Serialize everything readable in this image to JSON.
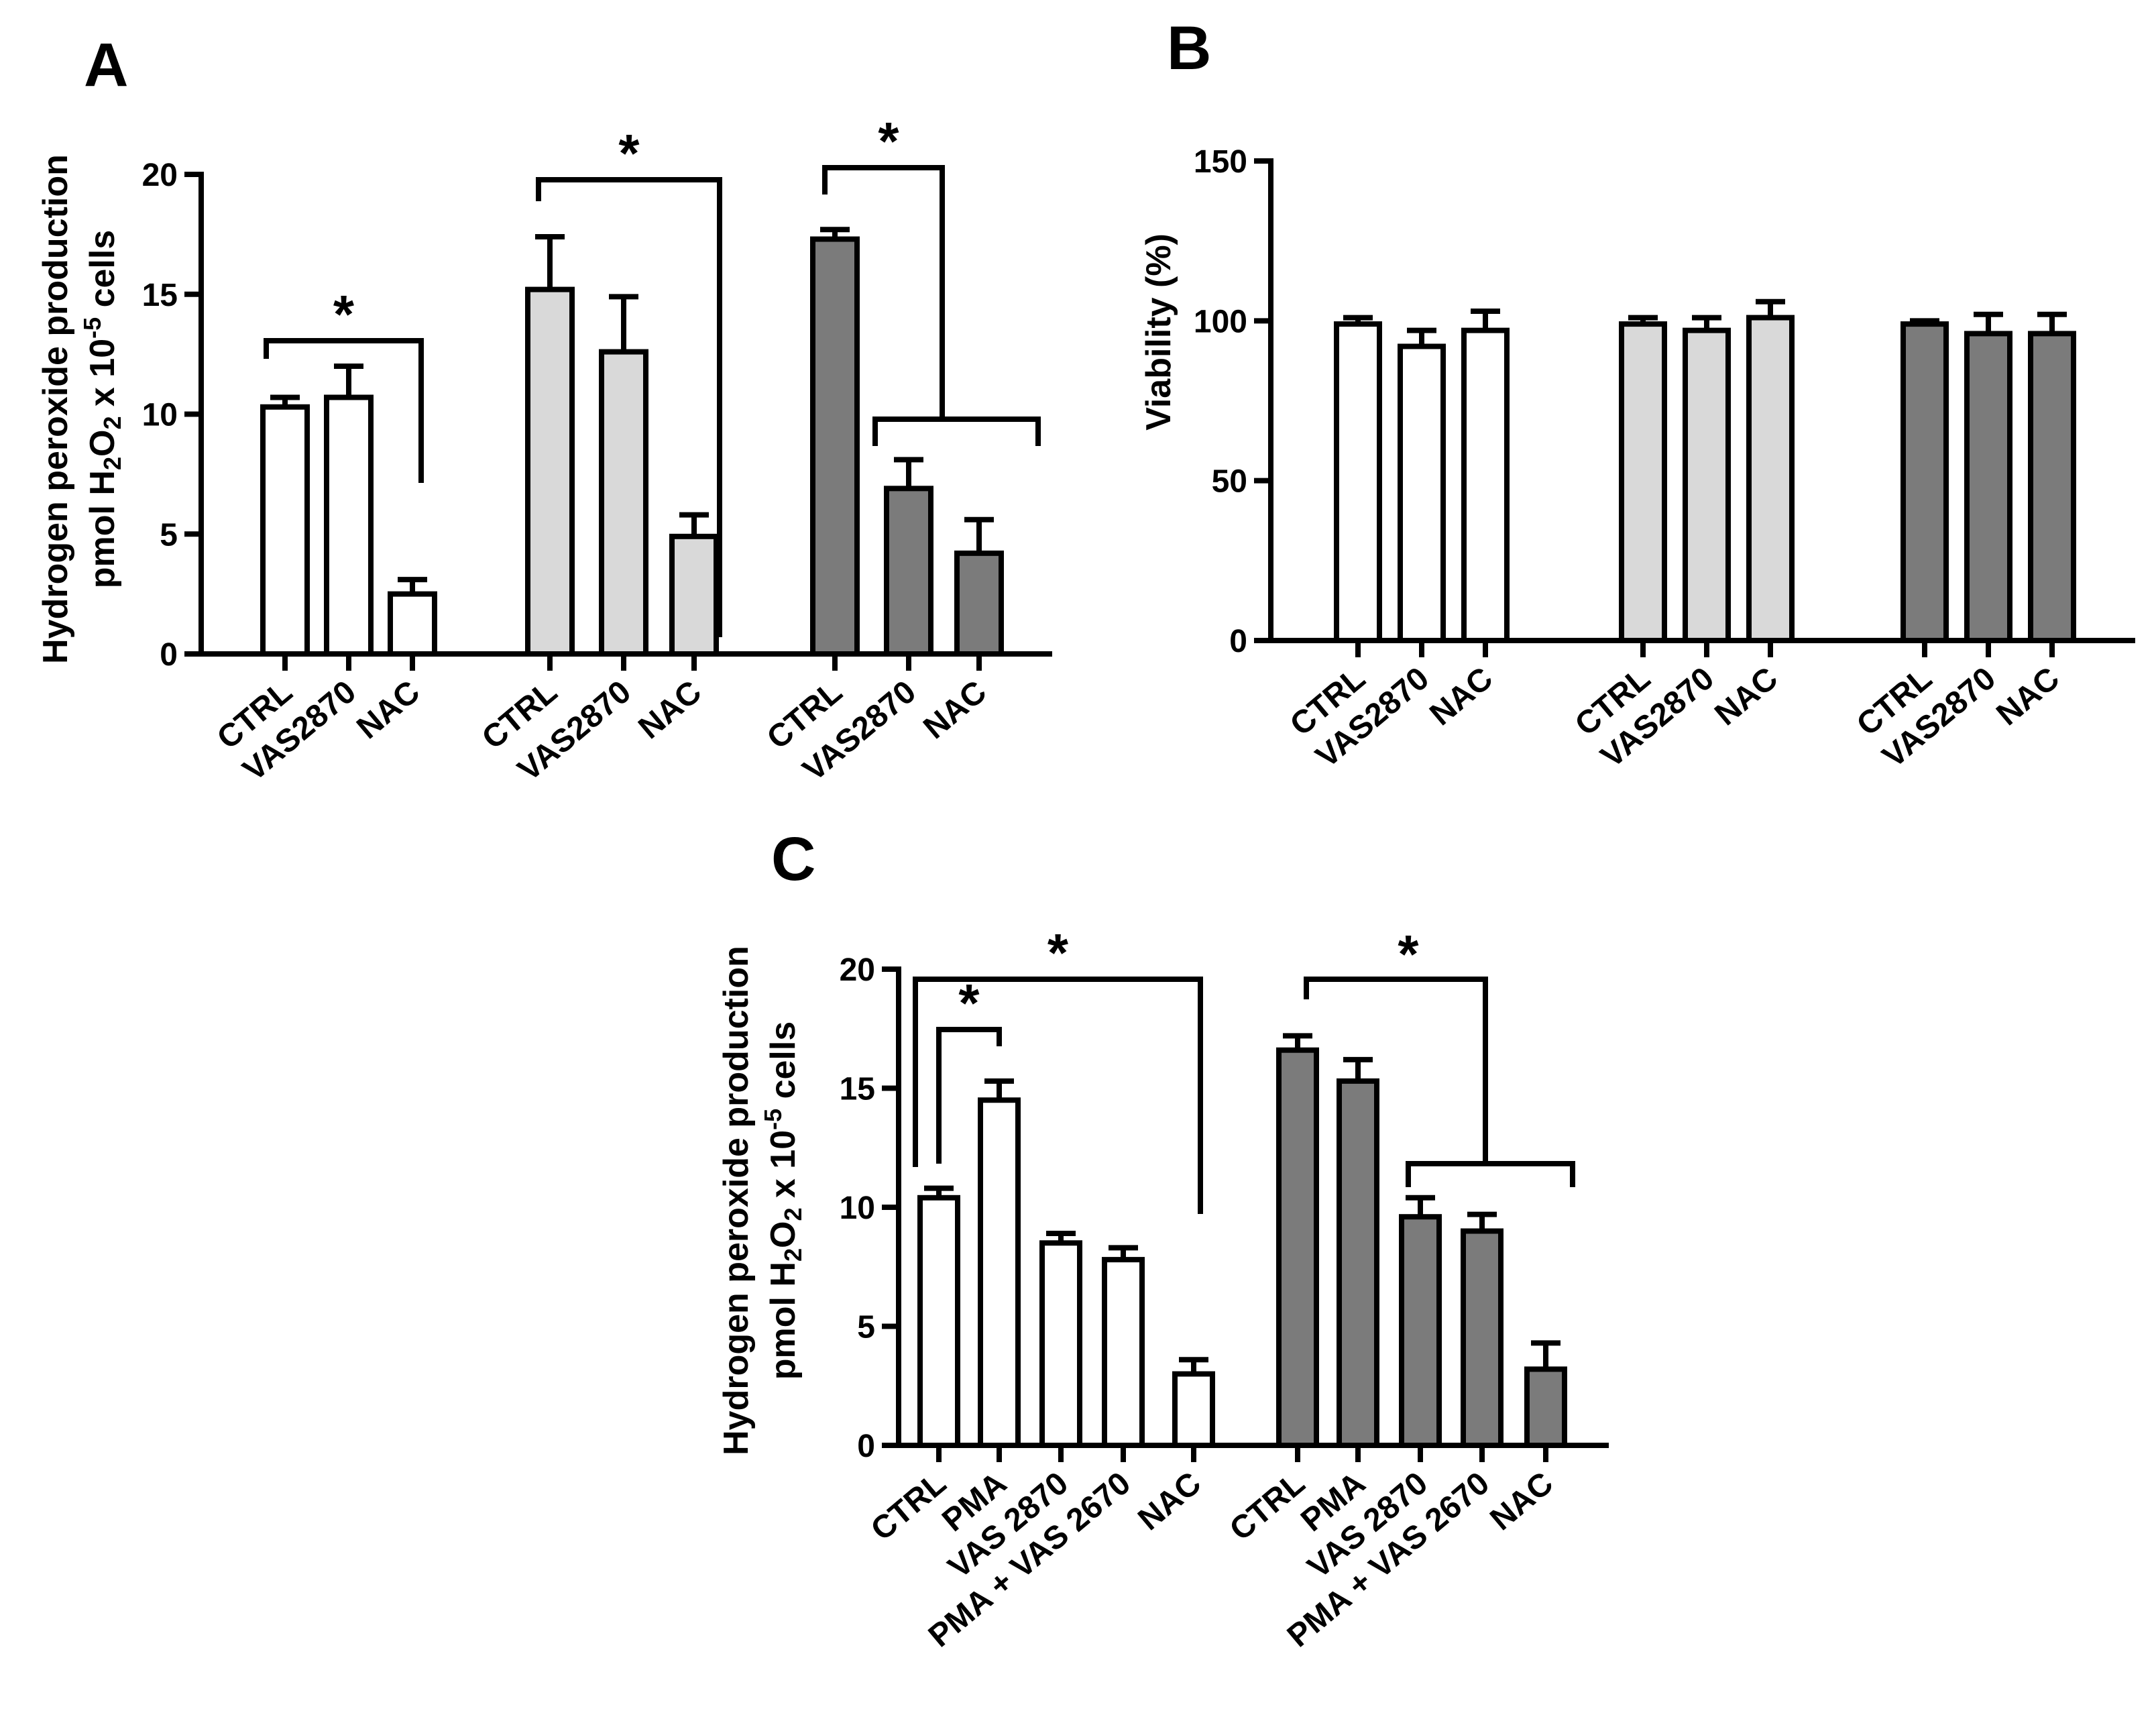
{
  "colors": {
    "white": "#ffffff",
    "light": "#d9d9d9",
    "dark": "#7b7b7b",
    "line": "#000000"
  },
  "chart_data": [
    {
      "panel": "A",
      "type": "bar",
      "ylabel_line1": "Hydrogen peroxide production",
      "ylabel_line2": {
        "pre": "pmol H",
        "sub1": "2",
        "mid": "O",
        "sub2": "2",
        "mid2": " x 10",
        "sup": "-5",
        "post": " cells"
      },
      "ylim": [
        0,
        20
      ],
      "yticks": [
        0,
        5,
        10,
        15,
        20
      ],
      "groups": [
        {
          "fill": "white",
          "categories": [
            "CTRL",
            "VAS2870",
            "NAC"
          ],
          "values": [
            10.3,
            10.7,
            2.5
          ],
          "errors": [
            0.4,
            1.3,
            0.6
          ]
        },
        {
          "fill": "light",
          "categories": [
            "CTRL",
            "VAS2870",
            "NAC"
          ],
          "values": [
            15.2,
            12.6,
            4.9
          ],
          "errors": [
            2.2,
            2.3,
            0.9
          ]
        },
        {
          "fill": "dark",
          "categories": [
            "CTRL",
            "VAS2870",
            "NAC"
          ],
          "values": [
            17.3,
            6.9,
            4.2
          ],
          "errors": [
            0.4,
            1.2,
            1.4
          ]
        }
      ],
      "significance": [
        {
          "label": "*",
          "from": [
            0,
            0
          ],
          "to": [
            0,
            2
          ]
        },
        {
          "label": "*",
          "from": [
            1,
            0
          ],
          "to": [
            1,
            2
          ]
        },
        {
          "label": "*",
          "from": [
            2,
            0
          ],
          "to_span": [
            2,
            1,
            2
          ]
        }
      ]
    },
    {
      "panel": "B",
      "type": "bar",
      "ylabel": "Viability (%)",
      "ylim": [
        0,
        150
      ],
      "yticks": [
        0,
        50,
        100,
        150
      ],
      "groups": [
        {
          "fill": "white",
          "categories": [
            "CTRL",
            "VAS2870",
            "NAC"
          ],
          "values": [
            99,
            92,
            97
          ],
          "errors": [
            2,
            5,
            6
          ]
        },
        {
          "fill": "light",
          "categories": [
            "CTRL",
            "VAS2870",
            "NAC"
          ],
          "values": [
            99,
            97,
            101
          ],
          "errors": [
            2,
            4,
            5
          ]
        },
        {
          "fill": "dark",
          "categories": [
            "CTRL",
            "VAS2870",
            "NAC"
          ],
          "values": [
            99,
            96,
            96
          ],
          "errors": [
            1,
            6,
            6
          ]
        }
      ]
    },
    {
      "panel": "C",
      "type": "bar",
      "ylabel_line1": "Hydrogen peroxide production",
      "ylabel_line2": {
        "pre": "pmol H",
        "sub1": "2",
        "mid": "O",
        "sub2": "2",
        "mid2": " x 10",
        "sup": "-5",
        "post": " cells"
      },
      "ylim": [
        0,
        20
      ],
      "yticks": [
        0,
        5,
        10,
        15,
        20
      ],
      "groups": [
        {
          "fill": "white",
          "categories": [
            "CTRL",
            "PMA",
            "VAS 2870",
            "PMA + VAS 2670",
            "NAC"
          ],
          "values": [
            10.4,
            14.5,
            8.5,
            7.8,
            3.0
          ],
          "errors": [
            0.4,
            0.8,
            0.4,
            0.5,
            0.6
          ]
        },
        {
          "fill": "dark",
          "categories": [
            "CTRL",
            "PMA",
            "VAS 2870",
            "PMA + VAS 2670",
            "NAC"
          ],
          "values": [
            16.6,
            15.3,
            9.6,
            9.0,
            3.2
          ],
          "errors": [
            0.6,
            0.9,
            0.8,
            0.7,
            1.1
          ]
        }
      ],
      "significance": [
        {
          "label": "*",
          "from": [
            0,
            0
          ],
          "to": [
            0,
            4
          ]
        },
        {
          "label": "*",
          "from": [
            0,
            0
          ],
          "to": [
            0,
            1
          ]
        },
        {
          "label": "*",
          "from": [
            1,
            0
          ],
          "to_span": [
            1,
            2,
            4
          ]
        }
      ]
    }
  ]
}
